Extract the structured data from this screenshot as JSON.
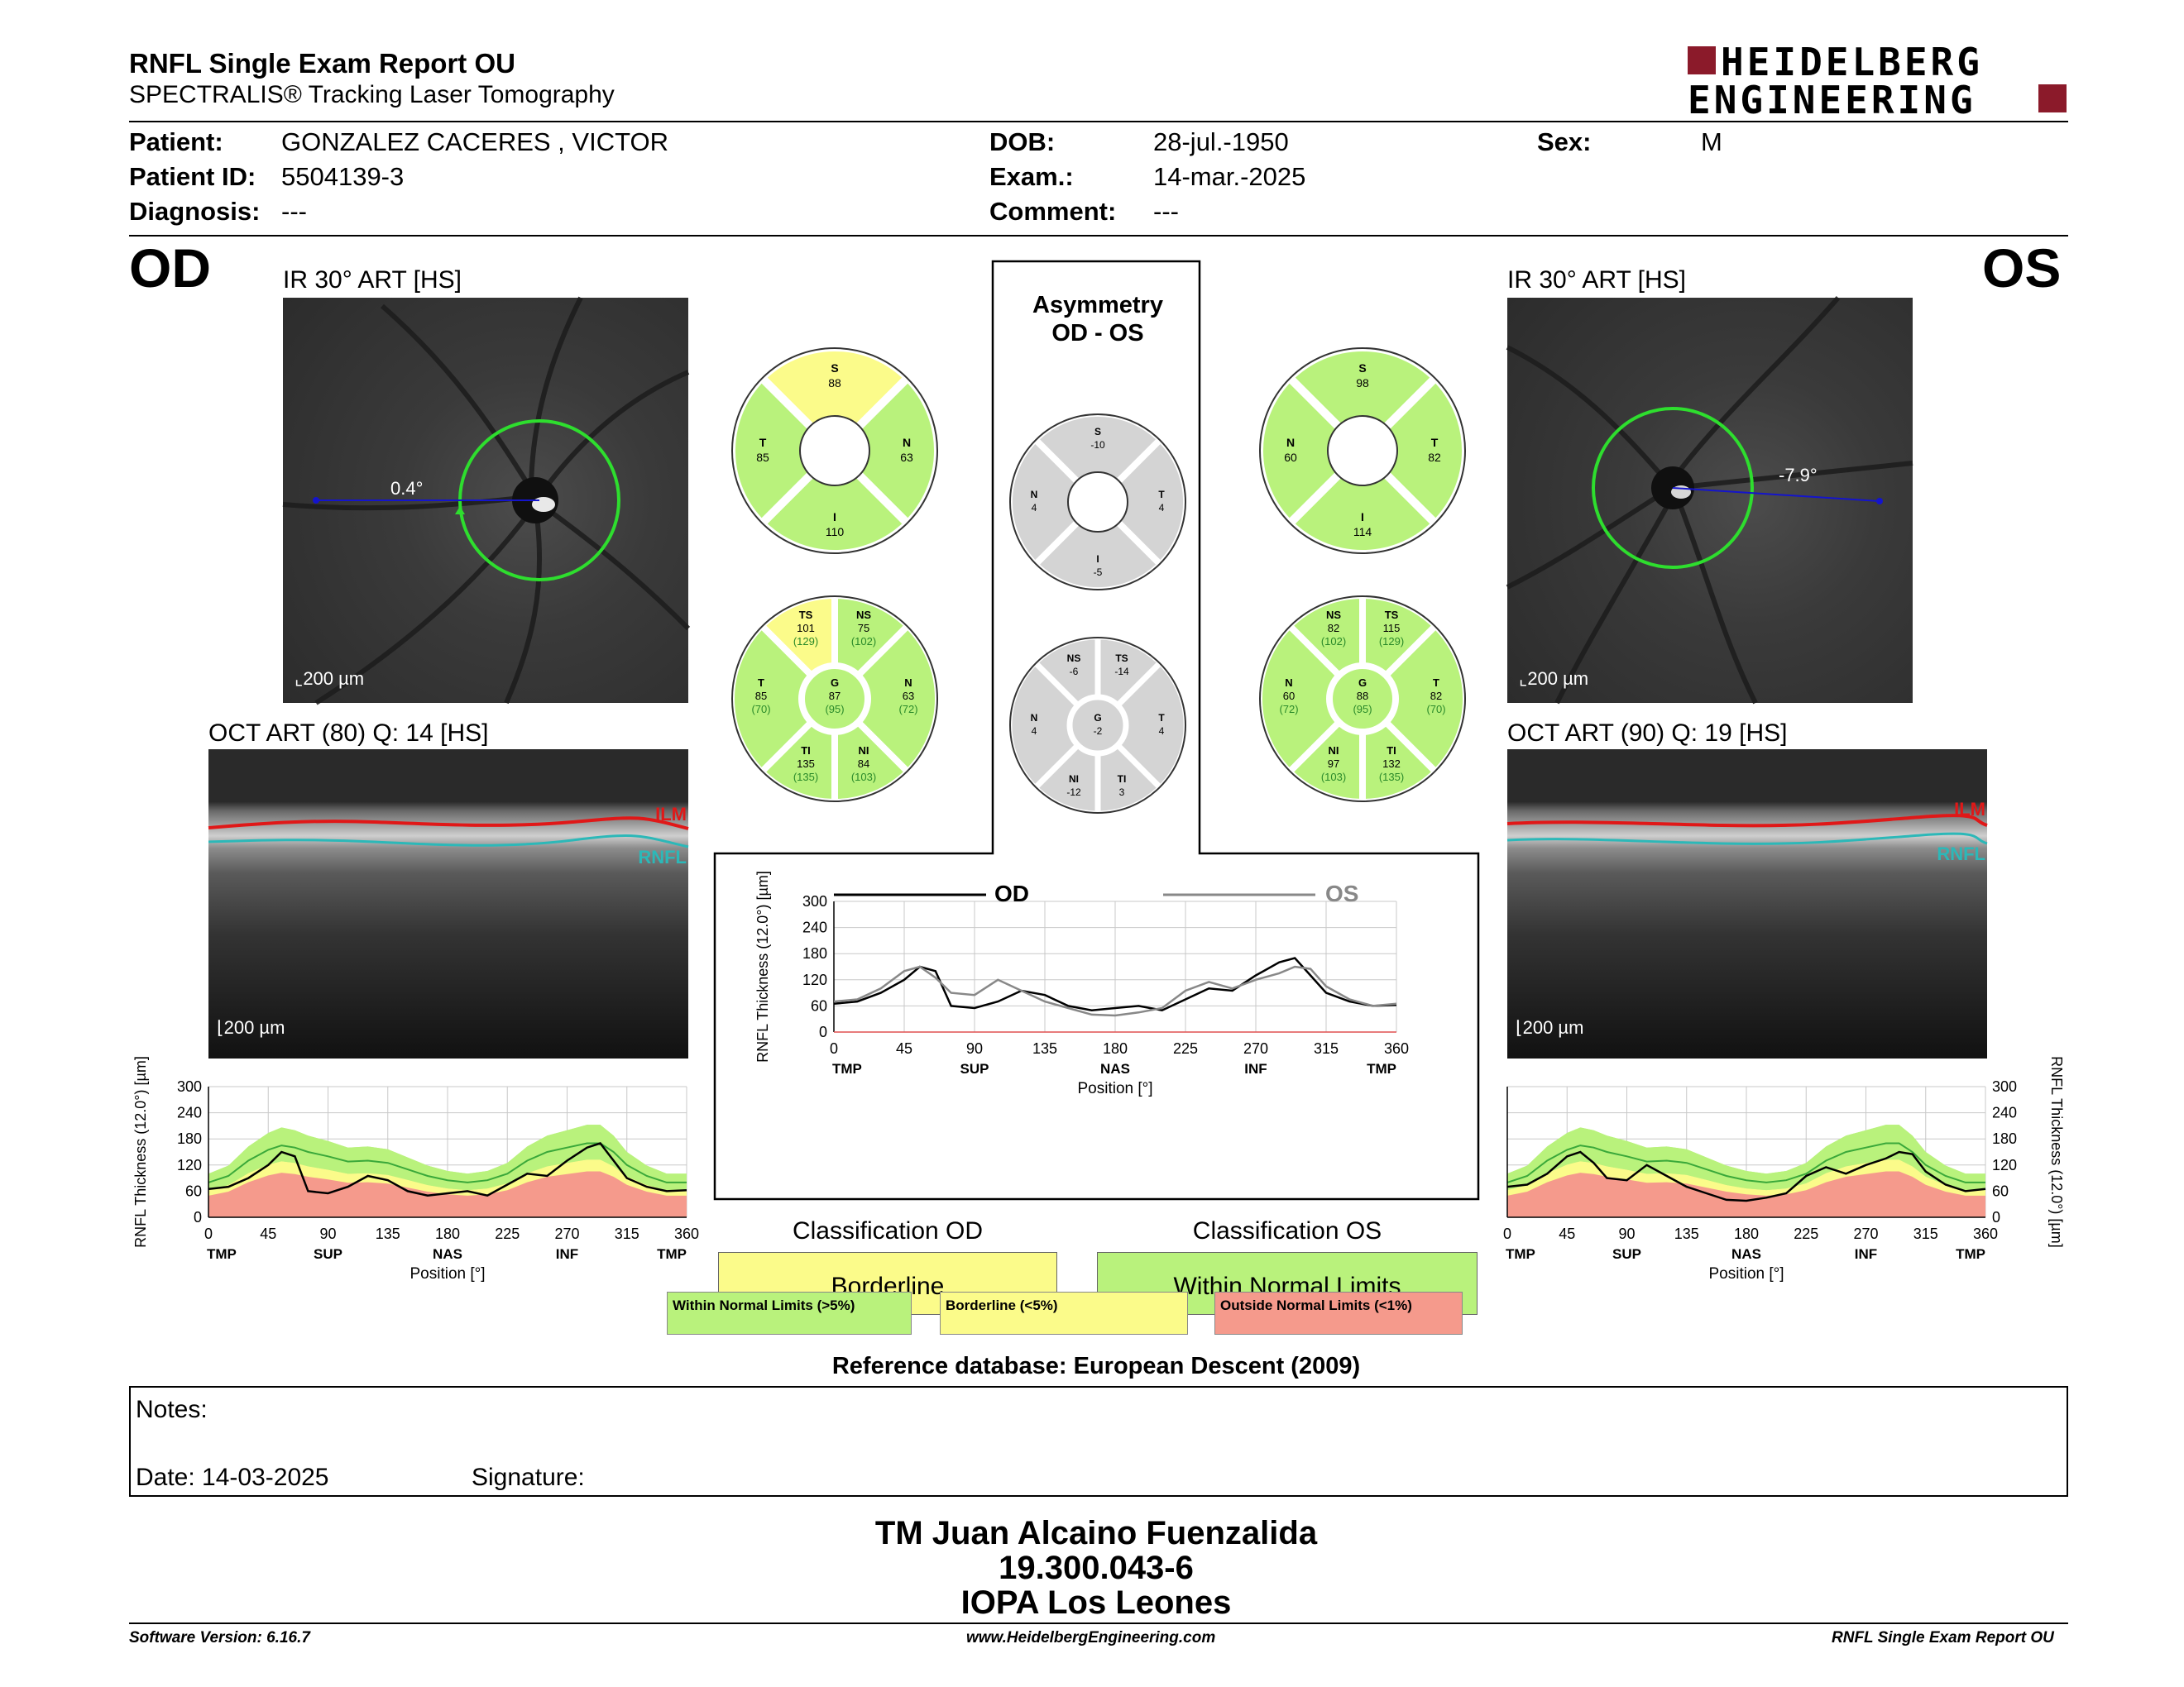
{
  "header": {
    "title": "RNFL Single Exam Report OU",
    "subtitle": "SPECTRALIS® Tracking Laser Tomography",
    "brand_line1": "HEIDELBERG",
    "brand_line2": "ENGINEERING",
    "brand_color": "#8b1a2a"
  },
  "patient": {
    "patient_label": "Patient:",
    "patient_value": "GONZALEZ CACERES , VICTOR",
    "id_label": "Patient ID:",
    "id_value": "5504139-3",
    "diag_label": "Diagnosis:",
    "diag_value": "---",
    "dob_label": "DOB:",
    "dob_value": "28-jul.-1950",
    "exam_label": "Exam.:",
    "exam_value": "14-mar.-2025",
    "comment_label": "Comment:",
    "comment_value": "---",
    "sex_label": "Sex:",
    "sex_value": "M"
  },
  "od": {
    "eye": "OD",
    "ir_label": "IR 30° ART [HS]",
    "angle": "0.4°",
    "scale_ir": "200 µm",
    "oct_label": "OCT ART (80) Q: 14 [HS]",
    "scale_oct": "200 µm",
    "ilm": "ILM",
    "rnfl": "RNFL",
    "sectors6": {
      "S": "S",
      "S_v": "88",
      "N": "N",
      "N_v": "63",
      "I": "I",
      "I_v": "110",
      "T": "T",
      "T_v": "85"
    },
    "sectors8": {
      "TS": "TS",
      "TS_v": "101",
      "TS_n": "(129)",
      "NS": "NS",
      "NS_v": "75",
      "NS_n": "(102)",
      "T": "T",
      "T_v": "85",
      "T_n": "(70)",
      "G": "G",
      "G_v": "87",
      "G_n": "(95)",
      "N": "N",
      "N_v": "63",
      "N_n": "(72)",
      "TI": "TI",
      "TI_v": "135",
      "TI_n": "(135)",
      "NI": "NI",
      "NI_v": "84",
      "NI_n": "(103)"
    }
  },
  "os": {
    "eye": "OS",
    "ir_label": "IR 30° ART [HS]",
    "angle": "-7.9°",
    "scale_ir": "200 µm",
    "oct_label": "OCT ART (90) Q: 19 [HS]",
    "scale_oct": "200 µm",
    "ilm": "ILM",
    "rnfl": "RNFL",
    "sectors6": {
      "S": "S",
      "S_v": "98",
      "N": "N",
      "N_v": "60",
      "I": "I",
      "I_v": "114",
      "T": "T",
      "T_v": "82"
    },
    "sectors8": {
      "NS": "NS",
      "NS_v": "82",
      "NS_n": "(102)",
      "TS": "TS",
      "TS_v": "115",
      "TS_n": "(129)",
      "N": "N",
      "N_v": "60",
      "N_n": "(72)",
      "G": "G",
      "G_v": "88",
      "G_n": "(95)",
      "T": "T",
      "T_v": "82",
      "T_n": "(70)",
      "NI": "NI",
      "NI_v": "97",
      "NI_n": "(103)",
      "TI": "TI",
      "TI_v": "132",
      "TI_n": "(135)"
    }
  },
  "asym": {
    "title1": "Asymmetry",
    "title2": "OD - OS",
    "s6": {
      "S": "S",
      "S_v": "-10",
      "N": "N",
      "N_v": "4",
      "T": "T",
      "T_v": "4",
      "I": "I",
      "I_v": "-5"
    },
    "s8": {
      "NS": "NS",
      "NS_v": "-6",
      "TS": "TS",
      "TS_v": "-14",
      "N": "N",
      "N_v": "4",
      "G": "G",
      "G_v": "-2",
      "T": "T",
      "T_v": "4",
      "NI": "NI",
      "NI_v": "-12",
      "TI": "TI",
      "TI_v": "3"
    }
  },
  "colors": {
    "within": "#b9f27c",
    "borderline": "#fbfb8a",
    "outside": "#f59a8c",
    "asym_gray": "#d4d4d4"
  },
  "classification": {
    "od_title": "Classification OD",
    "od_value": "Borderline",
    "os_title": "Classification OS",
    "os_value": "Within Normal Limits",
    "legend_within": "Within Normal Limits (>5%)",
    "legend_border": "Borderline (<5%)",
    "legend_outside": "Outside Normal Limits (<1%)",
    "reference": "Reference database: European Descent (2009)"
  },
  "notes": {
    "notes_label": "Notes:",
    "date_label": "Date: 14-03-2025",
    "signature_label": "Signature:"
  },
  "operator": {
    "name": "TM Juan Alcaino Fuenzalida",
    "id": "19.300.043-6",
    "place": "IOPA Los Leones"
  },
  "footer": {
    "software": "Software Version: 6.16.7",
    "website": "www.HeidelbergEngineering.com",
    "report": "RNFL Single Exam Report OU"
  },
  "chart_data": [
    {
      "type": "line",
      "name_hint": "od-thickness-profile",
      "xlabel": "Position [°]",
      "ylabel": "RNFL Thickness (12.0°) [µm]",
      "xlim": [
        0,
        360
      ],
      "ylim": [
        0,
        300
      ],
      "xticks": [
        0,
        45,
        90,
        135,
        180,
        225,
        270,
        315,
        360
      ],
      "yticks": [
        0,
        60,
        120,
        180,
        240,
        300
      ],
      "region_labels": [
        "TMP",
        "SUP",
        "NAS",
        "INF",
        "TMP"
      ],
      "x": [
        0,
        15,
        30,
        45,
        55,
        65,
        75,
        90,
        105,
        120,
        135,
        150,
        165,
        180,
        195,
        210,
        225,
        240,
        255,
        270,
        285,
        295,
        305,
        315,
        330,
        345,
        360
      ],
      "values": [
        65,
        70,
        90,
        120,
        150,
        140,
        60,
        55,
        70,
        95,
        85,
        60,
        50,
        55,
        60,
        50,
        75,
        100,
        95,
        130,
        160,
        170,
        130,
        90,
        70,
        60,
        62
      ],
      "normal_median": [
        80,
        95,
        130,
        155,
        165,
        160,
        150,
        140,
        128,
        130,
        125,
        110,
        95,
        85,
        80,
        85,
        100,
        130,
        150,
        160,
        170,
        170,
        150,
        120,
        95,
        80,
        80
      ]
    },
    {
      "type": "line",
      "name_hint": "comparison-profile",
      "xlabel": "Position [°]",
      "ylabel": "RNFL Thickness (12.0°) [µm]",
      "xlim": [
        0,
        360
      ],
      "ylim": [
        0,
        300
      ],
      "xticks": [
        0,
        45,
        90,
        135,
        180,
        225,
        270,
        315,
        360
      ],
      "yticks": [
        0,
        60,
        120,
        180,
        240,
        300
      ],
      "region_labels": [
        "TMP",
        "SUP",
        "NAS",
        "INF",
        "TMP"
      ],
      "series": [
        {
          "name": "OD",
          "color": "#000000",
          "x": [
            0,
            15,
            30,
            45,
            55,
            65,
            75,
            90,
            105,
            120,
            135,
            150,
            165,
            180,
            195,
            210,
            225,
            240,
            255,
            270,
            285,
            295,
            305,
            315,
            330,
            345,
            360
          ],
          "values": [
            65,
            70,
            90,
            120,
            150,
            140,
            60,
            55,
            70,
            95,
            85,
            60,
            50,
            55,
            60,
            50,
            75,
            100,
            95,
            130,
            160,
            170,
            130,
            90,
            70,
            60,
            62
          ]
        },
        {
          "name": "OS",
          "color": "#888888",
          "x": [
            0,
            15,
            30,
            45,
            55,
            65,
            75,
            90,
            105,
            120,
            135,
            150,
            165,
            180,
            195,
            210,
            225,
            240,
            255,
            270,
            285,
            295,
            305,
            315,
            330,
            345,
            360
          ],
          "values": [
            70,
            75,
            100,
            140,
            150,
            125,
            90,
            85,
            120,
            95,
            70,
            55,
            40,
            38,
            45,
            55,
            95,
            115,
            100,
            120,
            135,
            150,
            145,
            105,
            75,
            60,
            65
          ]
        }
      ]
    },
    {
      "type": "line",
      "name_hint": "os-thickness-profile",
      "xlabel": "Position [°]",
      "ylabel": "RNFL Thickness (12.0°) [µm]",
      "xlim": [
        0,
        360
      ],
      "ylim": [
        0,
        300
      ],
      "xticks": [
        0,
        45,
        90,
        135,
        180,
        225,
        270,
        315,
        360
      ],
      "yticks": [
        0,
        60,
        120,
        180,
        240,
        300
      ],
      "region_labels": [
        "TMP",
        "SUP",
        "NAS",
        "INF",
        "TMP"
      ],
      "x": [
        0,
        15,
        30,
        45,
        55,
        65,
        75,
        90,
        105,
        120,
        135,
        150,
        165,
        180,
        195,
        210,
        225,
        240,
        255,
        270,
        285,
        295,
        305,
        315,
        330,
        345,
        360
      ],
      "values": [
        70,
        75,
        100,
        140,
        150,
        125,
        90,
        85,
        120,
        95,
        70,
        55,
        40,
        38,
        45,
        55,
        95,
        115,
        100,
        120,
        135,
        150,
        145,
        105,
        75,
        60,
        65
      ],
      "normal_median": [
        80,
        95,
        130,
        155,
        165,
        160,
        150,
        140,
        128,
        130,
        125,
        110,
        95,
        85,
        80,
        85,
        100,
        130,
        150,
        160,
        170,
        170,
        150,
        120,
        95,
        80,
        80
      ]
    }
  ]
}
